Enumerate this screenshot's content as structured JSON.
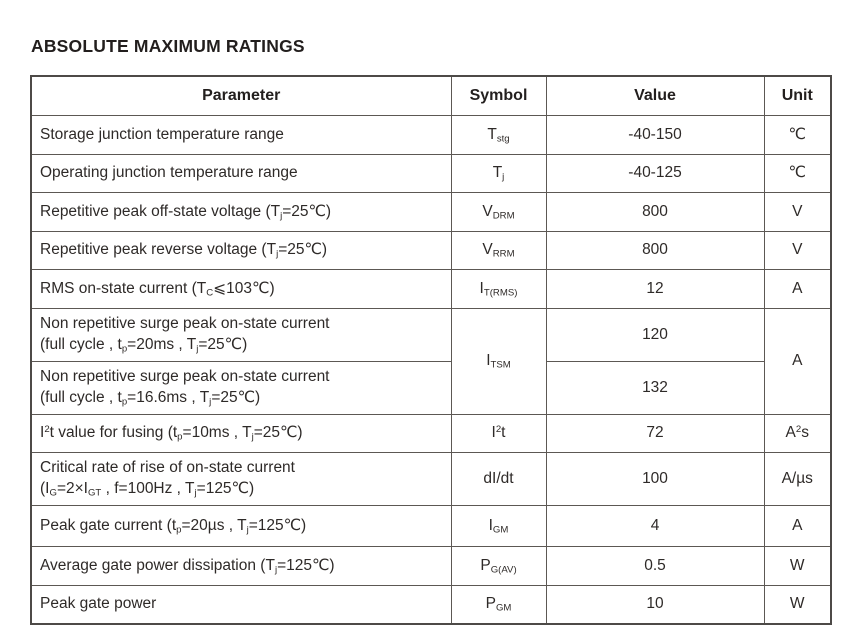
{
  "title": "ABSOLUTE MAXIMUM RATINGS",
  "colors": {
    "background": "#ffffff",
    "text": "#2e2a28",
    "border": "#5c5854"
  },
  "table": {
    "headers": [
      "Parameter",
      "Symbol",
      "Value",
      "Unit"
    ],
    "rows": [
      {
        "parameter": "Storage junction temperature range",
        "symbol": "T~stg~",
        "value": "-40-150",
        "unit": "℃"
      },
      {
        "parameter": "Operating junction temperature range",
        "symbol": "T~j~",
        "value": "-40-125",
        "unit": "℃"
      },
      {
        "parameter": "Repetitive peak off-state voltage (T~j~=25℃)",
        "symbol": "V~DRM~",
        "value": "800",
        "unit": "V"
      },
      {
        "parameter": "Repetitive peak reverse voltage (T~j~=25℃)",
        "symbol": "V~RRM~",
        "value": "800",
        "unit": "V"
      },
      {
        "parameter": "RMS on-state current (T~C~⩽103℃)",
        "symbol": "I~T(RMS)~",
        "value": "12",
        "unit": "A"
      },
      {
        "parameter": "Non repetitive surge peak on-state current\n(full cycle , t~p~=20ms , T~j~=25℃)",
        "symbol": "I~TSM~",
        "value": "120",
        "unit": "A"
      },
      {
        "parameter": "Non repetitive surge peak on-state current\n(full cycle , t~p~=16.6ms , T~j~=25℃)",
        "value": "132"
      },
      {
        "parameter": "I^2^t value for fusing (t~p~=10ms , T~j~=25℃)",
        "symbol": "I^2^t",
        "value": "72",
        "unit": "A^2^s"
      },
      {
        "parameter": "Critical rate of rise of on-state current\n(I~G~=2×I~GT~ , f=100Hz , T~j~=125℃)",
        "symbol": "dI/dt",
        "value": "100",
        "unit": "A/µs"
      },
      {
        "parameter": "Peak gate current (t~p~=20µs , T~j~=125℃)",
        "symbol": "I~GM~",
        "value": "4",
        "unit": "A"
      },
      {
        "parameter": "Average gate power dissipation (T~j~=125℃)",
        "symbol": "P~G(AV)~",
        "value": "0.5",
        "unit": "W"
      },
      {
        "parameter": "Peak gate power",
        "symbol": "P~GM~",
        "value": "10",
        "unit": "W"
      }
    ]
  }
}
